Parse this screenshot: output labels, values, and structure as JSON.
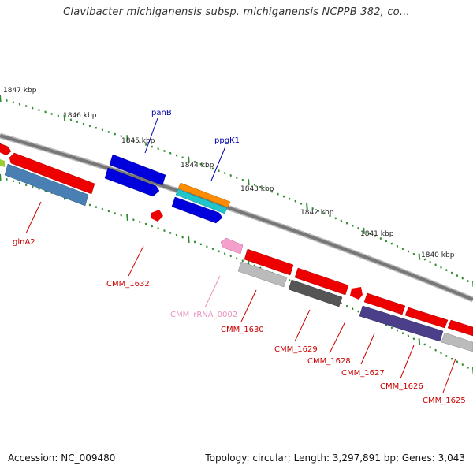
{
  "title": "Clavibacter michiganensis subsp. michiganensis NCPPB 382, co...",
  "footer": {
    "accession": "Accession: NC_009480",
    "info": "Topology: circular; Length: 3,297,891 bp; Genes: 3,043"
  },
  "colors": {
    "cds_red": "#ee0000",
    "cds_blue": "#0000dd",
    "steelblue": "#4a7fb3",
    "orange": "#ff8c00",
    "cyan": "#22c4cc",
    "pink": "#f4a0cc",
    "gray": "#aaaaaa",
    "darkgray": "#555555",
    "purple": "#4b3f8a",
    "backbone": "#777777",
    "tick": "#2e8b2e",
    "label_red": "#cc0000",
    "label_blue": "#0000aa",
    "label_pink": "#e890c0"
  },
  "kbp_labels": [
    "1847 kbp",
    "1846 kbp",
    "1845 kbp",
    "1844 kbp",
    "1843 kbp",
    "1842 kbp",
    "1841 kbp",
    "1840 kbp"
  ],
  "gene_labels": [
    "glnA2",
    "CMM_1632",
    "CMM_rRNA_0002",
    "CMM_1630",
    "CMM_1629",
    "CMM_1628",
    "CMM_1627",
    "CMM_1626",
    "CMM_1625",
    "panB",
    "ppgK1"
  ]
}
